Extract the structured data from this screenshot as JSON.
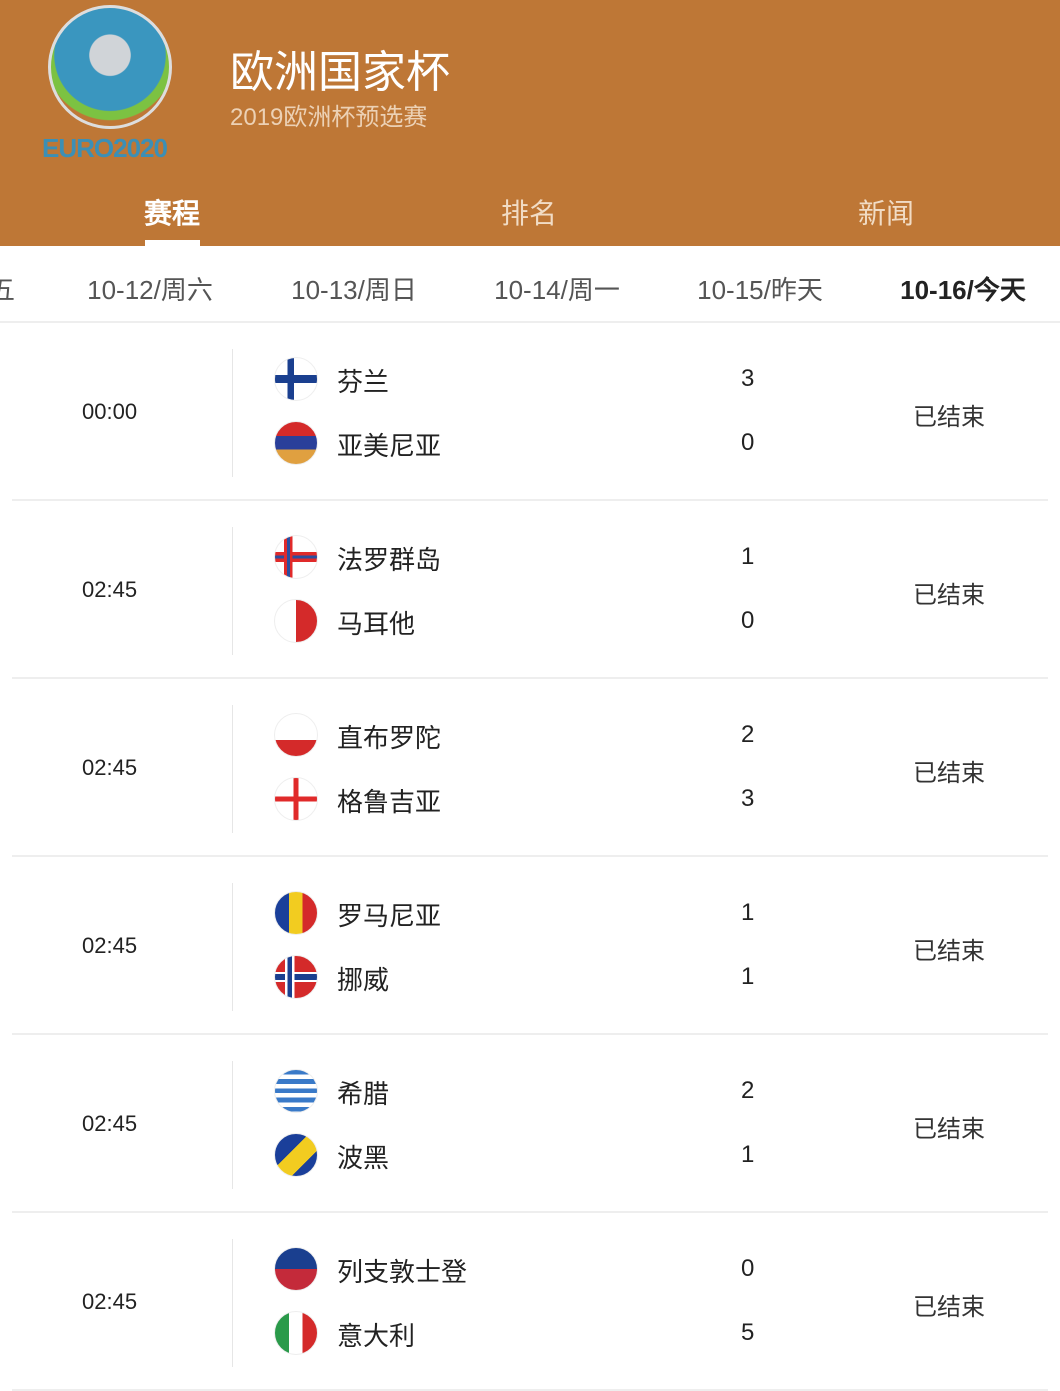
{
  "header": {
    "logo_text": "EURO2020",
    "title": "欧洲国家杯",
    "subtitle": "2019欧洲杯预选赛",
    "brand_color": "#BE7736"
  },
  "tabs": [
    {
      "label": "赛程",
      "active": true
    },
    {
      "label": "排名"
    },
    {
      "label": "新闻"
    }
  ],
  "dates": [
    {
      "label": "五"
    },
    {
      "label": "10-12/周六"
    },
    {
      "label": "10-13/周日"
    },
    {
      "label": "10-14/周一"
    },
    {
      "label": "10-15/昨天"
    },
    {
      "label": "10-16/今天",
      "active": true
    }
  ],
  "matches": [
    {
      "time": "00:00",
      "status": "已结束",
      "home": {
        "name": "芬兰",
        "score": "3",
        "flag": "finland"
      },
      "away": {
        "name": "亚美尼亚",
        "score": "0",
        "flag": "armenia"
      }
    },
    {
      "time": "02:45",
      "status": "已结束",
      "home": {
        "name": "法罗群岛",
        "score": "1",
        "flag": "faroe"
      },
      "away": {
        "name": "马耳他",
        "score": "0",
        "flag": "malta"
      }
    },
    {
      "time": "02:45",
      "status": "已结束",
      "home": {
        "name": "直布罗陀",
        "score": "2",
        "flag": "gibraltar"
      },
      "away": {
        "name": "格鲁吉亚",
        "score": "3",
        "flag": "georgia"
      }
    },
    {
      "time": "02:45",
      "status": "已结束",
      "home": {
        "name": "罗马尼亚",
        "score": "1",
        "flag": "romania"
      },
      "away": {
        "name": "挪威",
        "score": "1",
        "flag": "norway"
      }
    },
    {
      "time": "02:45",
      "status": "已结束",
      "home": {
        "name": "希腊",
        "score": "2",
        "flag": "greece"
      },
      "away": {
        "name": "波黑",
        "score": "1",
        "flag": "bosnia"
      }
    },
    {
      "time": "02:45",
      "status": "已结束",
      "home": {
        "name": "列支敦士登",
        "score": "0",
        "flag": "liechtenstein"
      },
      "away": {
        "name": "意大利",
        "score": "5",
        "flag": "italy"
      }
    }
  ]
}
